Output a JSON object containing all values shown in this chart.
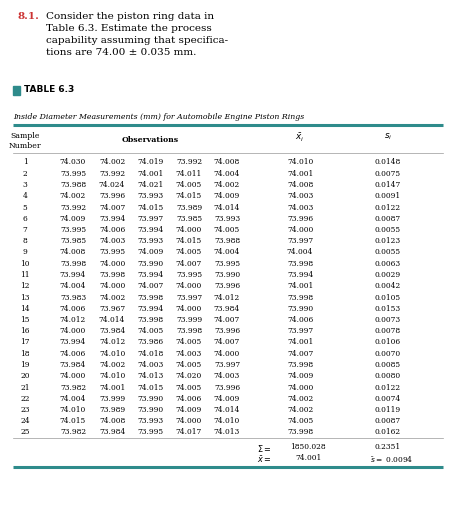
{
  "title_number": "8.1.",
  "title_text": "Consider the piston ring data in\nTable 6.3. Estimate the process\ncapability assuming that specifica-\ntions are 74.00 ± 0.035 mm.",
  "table_label": "TABLE 6.3",
  "table_subtitle": "Inside Diameter Measurements (mm) for Automobile Engine Piston Rings",
  "observations": [
    [
      74.03,
      74.002,
      74.019,
      73.992,
      74.008,
      74.01,
      0.0148
    ],
    [
      73.995,
      73.992,
      74.001,
      74.011,
      74.004,
      74.001,
      0.0075
    ],
    [
      73.988,
      74.024,
      74.021,
      74.005,
      74.002,
      74.008,
      0.0147
    ],
    [
      74.002,
      73.996,
      73.993,
      74.015,
      74.009,
      74.003,
      0.0091
    ],
    [
      73.992,
      74.007,
      74.015,
      73.989,
      74.014,
      74.003,
      0.0122
    ],
    [
      74.009,
      73.994,
      73.997,
      73.985,
      73.993,
      73.996,
      0.0087
    ],
    [
      73.995,
      74.006,
      73.994,
      74.0,
      74.005,
      74.0,
      0.0055
    ],
    [
      73.985,
      74.003,
      73.993,
      74.015,
      73.988,
      73.997,
      0.0123
    ],
    [
      74.008,
      73.995,
      74.009,
      74.005,
      74.004,
      74.004,
      0.0055
    ],
    [
      73.998,
      74.0,
      73.99,
      74.007,
      73.995,
      73.998,
      0.0063
    ],
    [
      73.994,
      73.998,
      73.994,
      73.995,
      73.99,
      73.994,
      0.0029
    ],
    [
      74.004,
      74.0,
      74.007,
      74.0,
      73.996,
      74.001,
      0.0042
    ],
    [
      73.983,
      74.002,
      73.998,
      73.997,
      74.012,
      73.998,
      0.0105
    ],
    [
      74.006,
      73.967,
      73.994,
      74.0,
      73.984,
      73.99,
      0.0153
    ],
    [
      74.012,
      74.014,
      73.998,
      73.999,
      74.007,
      74.006,
      0.0073
    ],
    [
      74.0,
      73.984,
      74.005,
      73.998,
      73.996,
      73.997,
      0.0078
    ],
    [
      73.994,
      74.012,
      73.986,
      74.005,
      74.007,
      74.001,
      0.0106
    ],
    [
      74.006,
      74.01,
      74.018,
      74.003,
      74.0,
      74.007,
      0.007
    ],
    [
      73.984,
      74.002,
      74.003,
      74.005,
      73.997,
      73.998,
      0.0085
    ],
    [
      74.0,
      74.01,
      74.013,
      74.02,
      74.003,
      74.009,
      0.008
    ],
    [
      73.982,
      74.001,
      74.015,
      74.005,
      73.996,
      74.0,
      0.0122
    ],
    [
      74.004,
      73.999,
      73.99,
      74.006,
      74.009,
      74.002,
      0.0074
    ],
    [
      74.01,
      73.989,
      73.99,
      74.009,
      74.014,
      74.002,
      0.0119
    ],
    [
      74.015,
      74.008,
      73.993,
      74.0,
      74.01,
      74.005,
      0.0087
    ],
    [
      73.982,
      73.984,
      73.995,
      74.017,
      74.013,
      73.998,
      0.0162
    ]
  ],
  "sum_value": "1850.028",
  "sum_s_value": "0.2351",
  "mean_value": "74.001",
  "mean_s_value": "0.0094",
  "teal_color": "#2E8B8B",
  "title_number_color": "#CC3333",
  "fig_width": 4.56,
  "fig_height": 5.12
}
